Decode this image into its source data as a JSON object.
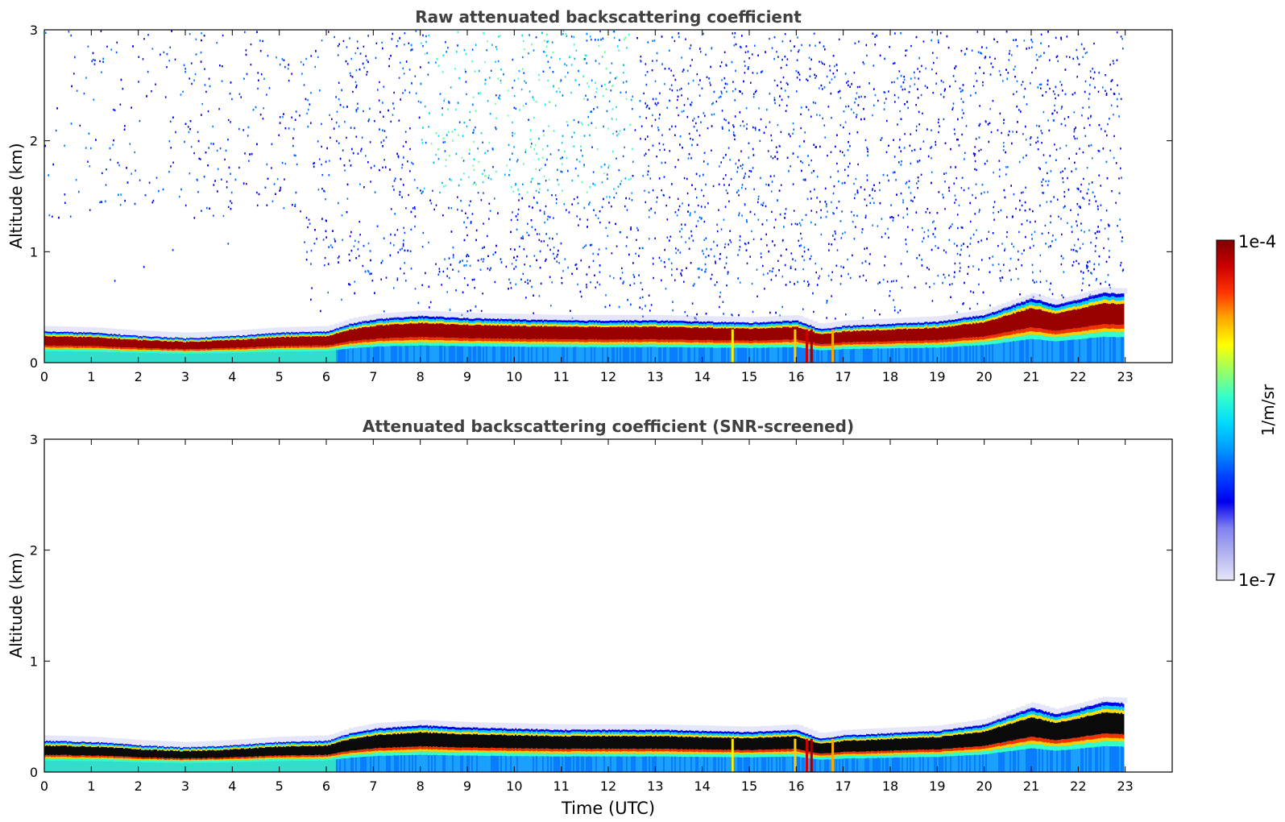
{
  "chart_data": [
    {
      "type": "heatmap",
      "title": "Raw attenuated backscattering coefficient",
      "xlabel": "",
      "ylabel": "Altitude (km)",
      "xlim": [
        0,
        24
      ],
      "ylim": [
        0,
        3
      ],
      "x_ticks": [
        0,
        1,
        2,
        3,
        4,
        5,
        6,
        7,
        8,
        9,
        10,
        11,
        12,
        13,
        14,
        15,
        16,
        17,
        18,
        19,
        20,
        21,
        22,
        23
      ],
      "y_ticks": [
        0,
        1,
        2,
        3
      ],
      "data_end_time": 22.95,
      "noise": true,
      "boundary_layer": {
        "time": [
          0,
          1,
          2,
          3,
          4,
          5,
          6,
          6.5,
          7,
          8,
          9,
          10,
          11,
          12,
          13,
          14,
          15,
          16,
          16.5,
          17,
          18,
          19,
          20,
          21,
          21.5,
          22,
          22.5,
          22.95
        ],
        "top_km": [
          0.28,
          0.27,
          0.24,
          0.22,
          0.24,
          0.27,
          0.28,
          0.35,
          0.39,
          0.42,
          0.4,
          0.39,
          0.38,
          0.38,
          0.38,
          0.37,
          0.36,
          0.38,
          0.3,
          0.33,
          0.35,
          0.37,
          0.43,
          0.58,
          0.52,
          0.57,
          0.63,
          0.62
        ]
      }
    },
    {
      "type": "heatmap",
      "title": "Attenuated backscattering coefficient (SNR-screened)",
      "xlabel": "Time (UTC)",
      "ylabel": "Altitude (km)",
      "xlim": [
        0,
        24
      ],
      "ylim": [
        0,
        3
      ],
      "x_ticks": [
        0,
        1,
        2,
        3,
        4,
        5,
        6,
        7,
        8,
        9,
        10,
        11,
        12,
        13,
        14,
        15,
        16,
        17,
        18,
        19,
        20,
        21,
        22,
        23
      ],
      "y_ticks": [
        0,
        1,
        2,
        3
      ],
      "data_end_time": 22.95,
      "noise": false,
      "boundary_layer": {
        "time": [
          0,
          1,
          2,
          3,
          4,
          5,
          6,
          6.5,
          7,
          8,
          9,
          10,
          11,
          12,
          13,
          14,
          15,
          16,
          16.5,
          17,
          18,
          19,
          20,
          21,
          21.5,
          22,
          22.5,
          22.95
        ],
        "top_km": [
          0.28,
          0.27,
          0.24,
          0.22,
          0.24,
          0.27,
          0.28,
          0.35,
          0.39,
          0.42,
          0.4,
          0.39,
          0.38,
          0.38,
          0.38,
          0.37,
          0.36,
          0.38,
          0.3,
          0.33,
          0.35,
          0.37,
          0.43,
          0.58,
          0.52,
          0.57,
          0.63,
          0.62
        ]
      }
    }
  ],
  "colorbar": {
    "label": "1/m/sr",
    "max_label": "1e-4",
    "min_label": "1e-7",
    "scale": "log",
    "colormap": [
      "#e6e6f8",
      "#b3b3f0",
      "#8080f0",
      "#0000f0",
      "#0044ff",
      "#0099ff",
      "#00d9ff",
      "#33ffcc",
      "#99ff66",
      "#ffff00",
      "#ffaa00",
      "#ff3300",
      "#cc0000",
      "#800000"
    ]
  }
}
